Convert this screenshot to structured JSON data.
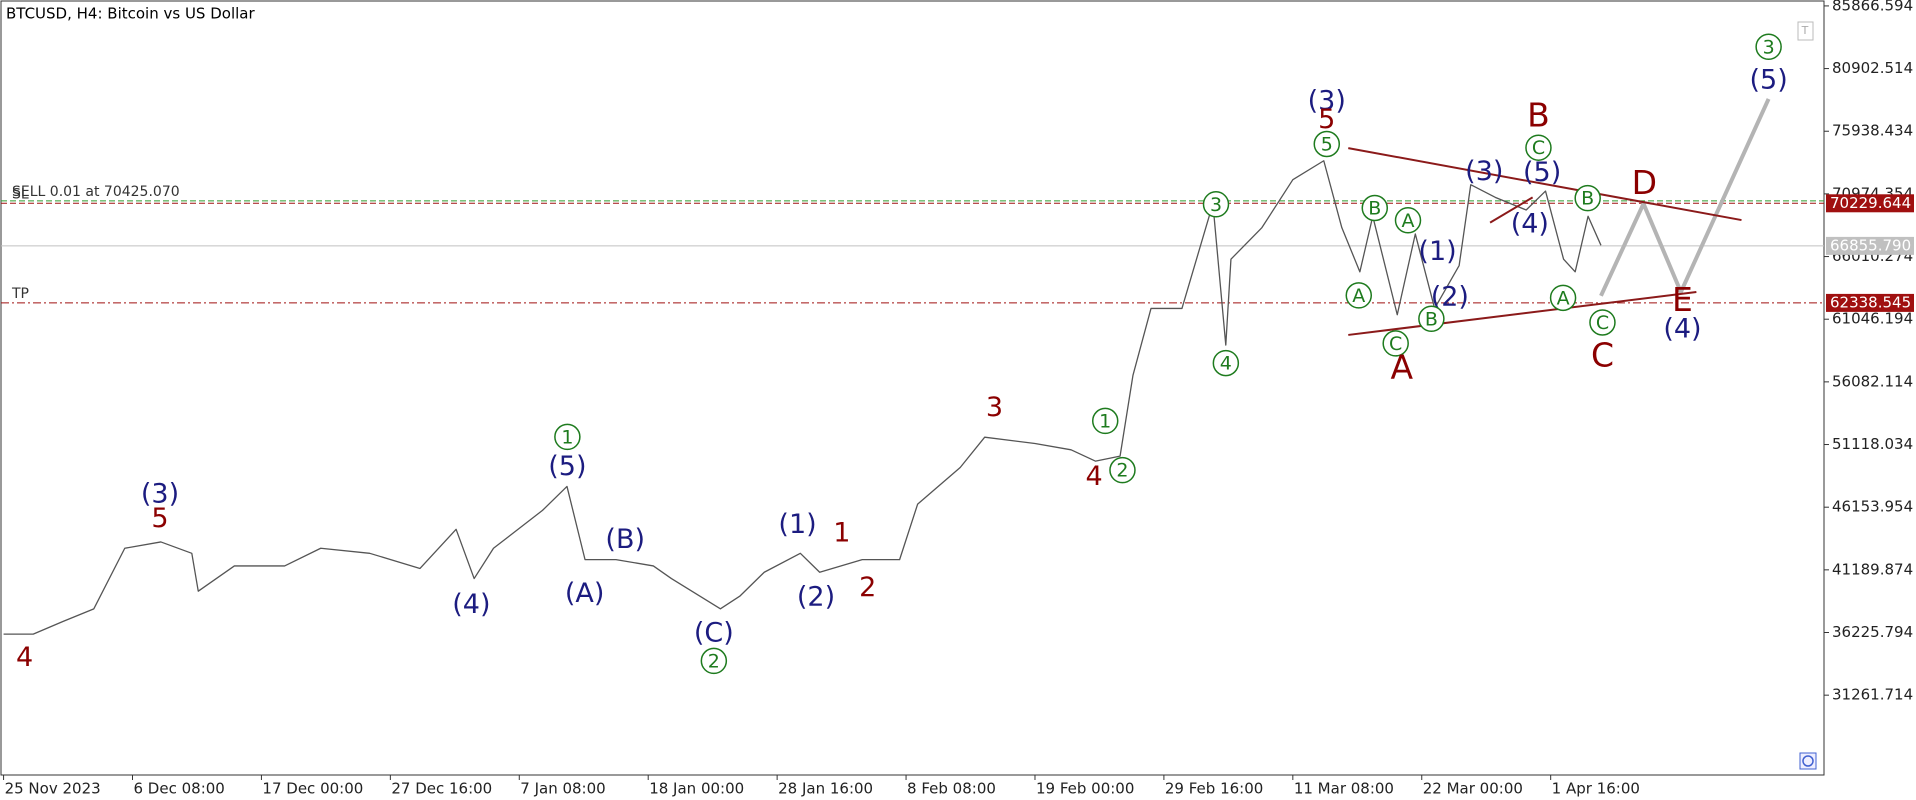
{
  "chart_data": {
    "type": "line",
    "title": "BTCUSD, H4:  Bitcoin vs US Dollar",
    "categories": [
      "25 Nov 2023",
      "6 Dec 08:00",
      "17 Dec 00:00",
      "27 Dec 16:00",
      "7 Jan 08:00",
      "18 Jan 00:00",
      "28 Jan 16:00",
      "8 Feb 08:00",
      "19 Feb 00:00",
      "29 Feb 16:00",
      "11 Mar 08:00",
      "22 Mar 00:00",
      "1 Apr 16:00"
    ],
    "xlim": [
      -0.02,
      14.12
    ],
    "ylim": [
      24937,
      86256
    ],
    "yticks": [
      85866.594,
      80902.514,
      75938.434,
      70974.354,
      66010.274,
      61046.194,
      56082.114,
      51118.034,
      46153.954,
      41189.874,
      36225.794,
      31261.714
    ],
    "series": [
      {
        "color": "#555555",
        "x": [
          0,
          0.23,
          0.46,
          0.7,
          0.94,
          1.22,
          1.46,
          1.51,
          1.79,
          2.18,
          2.46,
          2.84,
          3.23,
          3.51,
          3.65,
          3.8,
          4.18,
          4.37,
          4.51,
          4.75,
          5.04,
          5.18,
          5.56,
          5.71,
          5.9,
          6.18,
          6.33,
          6.66,
          6.95,
          7.09,
          7.42,
          7.61,
          8.0,
          8.28,
          8.47,
          8.66,
          8.76,
          8.9,
          9.14,
          9.38,
          9.48,
          9.52,
          9.76,
          10.0,
          10.24,
          10.38,
          10.52,
          10.62,
          10.81,
          10.95,
          11.1,
          11.29,
          11.38,
          11.57,
          11.81,
          11.96,
          12.1,
          12.19,
          12.29,
          12.39
        ],
        "values": [
          36100,
          36100,
          37100,
          38100,
          42900,
          43400,
          42500,
          39500,
          41500,
          41500,
          42900,
          42500,
          41300,
          44400,
          40500,
          42900,
          45900,
          47800,
          42000,
          42000,
          41500,
          40500,
          38100,
          39100,
          41000,
          42500,
          41000,
          42000,
          42000,
          46400,
          49300,
          51700,
          51200,
          50700,
          49800,
          50200,
          56600,
          61900,
          61900,
          70200,
          59000,
          65800,
          68300,
          72100,
          73600,
          68300,
          64800,
          69200,
          61400,
          67800,
          61900,
          65300,
          71700,
          70700,
          69700,
          71200,
          65800,
          64800,
          69200,
          66900
        ]
      },
      {
        "color": "#b4b4b4",
        "x": [
          12.39,
          12.72,
          13.01,
          13.69
        ],
        "values": [
          62900,
          70200,
          63200,
          78500
        ]
      }
    ],
    "trendlines": [
      {
        "color": "#8b1a1a",
        "x": [
          10.43,
          13.48
        ],
        "y": [
          74600,
          68900
        ]
      },
      {
        "color": "#8b1a1a",
        "x": [
          10.43,
          13.13
        ],
        "y": [
          59800,
          63200
        ]
      },
      {
        "color": "#8b1a1a",
        "x": [
          11.53,
          11.86
        ],
        "y": [
          68700,
          70700
        ]
      }
    ],
    "levels": [
      {
        "text": "SELL 0.01 at 70425.070",
        "value": 70425.07,
        "color": "#2e9b2e",
        "dash": "dashed"
      },
      {
        "text": "SL",
        "value": 70229.644,
        "tag": "70229.644",
        "color": "#a01010",
        "dash": "dashed"
      },
      {
        "value": 66855.79,
        "tag": "66855.790",
        "color": "#c0c0c0",
        "dash": "solid"
      },
      {
        "text": "TP",
        "value": 62338.545,
        "tag": "62338.545",
        "color": "#a01010",
        "dash": "dashdot"
      }
    ],
    "wave_labels": [
      {
        "text": "4",
        "color": "#8b0000"
      },
      {
        "text": "(3)",
        "color": "#1c1c80"
      },
      {
        "text": "5",
        "color": "#8b0000"
      },
      {
        "text": "(4)",
        "color": "#1c1c80"
      },
      {
        "text": "1",
        "color": "#1e7b1e",
        "circled": true
      },
      {
        "text": "(5)",
        "color": "#1c1c80"
      },
      {
        "text": "(A)",
        "color": "#1c1c80"
      },
      {
        "text": "(B)",
        "color": "#1c1c80"
      },
      {
        "text": "(C)",
        "color": "#1c1c80"
      },
      {
        "text": "2",
        "color": "#1e7b1e",
        "circled": true
      },
      {
        "text": "(1)",
        "color": "#1c1c80"
      },
      {
        "text": "1",
        "color": "#8b0000"
      },
      {
        "text": "(2)",
        "color": "#1c1c80"
      },
      {
        "text": "2",
        "color": "#8b0000"
      },
      {
        "text": "3",
        "color": "#8b0000"
      },
      {
        "text": "1",
        "color": "#1e7b1e",
        "circled": true
      },
      {
        "text": "4",
        "color": "#8b0000"
      },
      {
        "text": "2",
        "color": "#1e7b1e",
        "circled": true
      },
      {
        "text": "3",
        "color": "#1e7b1e",
        "circled": true
      },
      {
        "text": "4",
        "color": "#1e7b1e",
        "circled": true
      },
      {
        "text": "(3)",
        "color": "#1c1c80"
      },
      {
        "text": "5",
        "color": "#8b0000"
      },
      {
        "text": "5",
        "color": "#1e7b1e",
        "circled": true
      },
      {
        "text": "B",
        "color": "#1e7b1e",
        "circled": true
      },
      {
        "text": "A",
        "color": "#1e7b1e",
        "circled": true
      },
      {
        "text": "A",
        "color": "#1e7b1e",
        "circled": true
      },
      {
        "text": "C",
        "color": "#1e7b1e",
        "circled": true
      },
      {
        "text": "A",
        "color": "#8b0000"
      },
      {
        "text": "(1)",
        "color": "#1c1c80"
      },
      {
        "text": "(2)",
        "color": "#1c1c80"
      },
      {
        "text": "B",
        "color": "#1e7b1e",
        "circled": true
      },
      {
        "text": "(3)",
        "color": "#1c1c80"
      },
      {
        "text": "(4)",
        "color": "#1c1c80"
      },
      {
        "text": "B",
        "color": "#8b0000"
      },
      {
        "text": "C",
        "color": "#1e7b1e",
        "circled": true
      },
      {
        "text": "(5)",
        "color": "#1c1c80"
      },
      {
        "text": "B",
        "color": "#1e7b1e",
        "circled": true
      },
      {
        "text": "A",
        "color": "#1e7b1e",
        "circled": true
      },
      {
        "text": "C",
        "color": "#1e7b1e",
        "circled": true
      },
      {
        "text": "C",
        "color": "#8b0000"
      },
      {
        "text": "D",
        "color": "#8b0000"
      },
      {
        "text": "E",
        "color": "#8b0000"
      },
      {
        "text": "(4)",
        "color": "#1c1c80"
      },
      {
        "text": "3",
        "color": "#1e7b1e",
        "circled": true
      },
      {
        "text": "(5)",
        "color": "#1c1c80"
      }
    ]
  }
}
